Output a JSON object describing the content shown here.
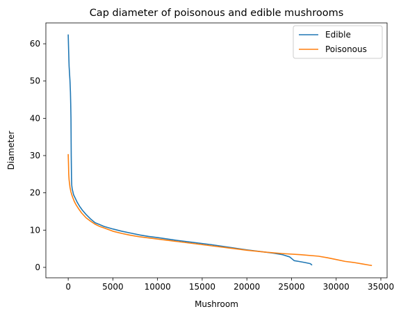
{
  "chart_data": {
    "type": "line",
    "title": "Cap diameter of poisonous and edible mushrooms",
    "xlabel": "Mushroom",
    "ylabel": "Diameter",
    "xlim": [
      -2500,
      35700
    ],
    "ylim": [
      -2.8,
      65.6
    ],
    "x_ticks": [
      0,
      5000,
      10000,
      15000,
      20000,
      25000,
      30000,
      35000
    ],
    "y_ticks": [
      0,
      10,
      20,
      30,
      40,
      50,
      60
    ],
    "grid": false,
    "legend_position": "upper-right",
    "series": [
      {
        "name": "Edible",
        "color": "#1f77b4",
        "x": [
          0,
          50,
          100,
          150,
          200,
          250,
          280,
          310,
          340,
          370,
          400,
          450,
          500,
          600,
          800,
          1000,
          1300,
          1600,
          2000,
          2500,
          3000,
          3500,
          4000,
          5000,
          6000,
          7000,
          8000,
          9000,
          10000,
          12000,
          14000,
          16000,
          18000,
          20000,
          22000,
          23000,
          24000,
          24800,
          25300,
          25800,
          26500,
          27100,
          27300
        ],
        "y": [
          62.5,
          58,
          54,
          52,
          50,
          47,
          44,
          40,
          30,
          24,
          22,
          21,
          20.5,
          19.5,
          18.5,
          17.5,
          16.3,
          15.3,
          14.2,
          13,
          12,
          11.5,
          11,
          10.3,
          9.7,
          9.2,
          8.7,
          8.3,
          8,
          7.3,
          6.7,
          6.1,
          5.4,
          4.7,
          4.1,
          3.8,
          3.4,
          2.8,
          1.8,
          1.6,
          1.3,
          1,
          0.6
        ]
      },
      {
        "name": "Poisonous",
        "color": "#ff7f0e",
        "x": [
          0,
          30,
          60,
          100,
          150,
          200,
          300,
          400,
          500,
          700,
          900,
          1200,
          1500,
          2000,
          2500,
          3000,
          3500,
          4000,
          5000,
          6000,
          7000,
          8000,
          9000,
          10000,
          12000,
          14000,
          16000,
          18000,
          20000,
          22000,
          24000,
          26000,
          28000,
          29000,
          30000,
          31000,
          32000,
          33000,
          33700,
          34000
        ],
        "y": [
          30.4,
          28,
          25,
          23.5,
          22.5,
          21.5,
          20.3,
          19.5,
          18.8,
          17.6,
          16.7,
          15.6,
          14.6,
          13.3,
          12.4,
          11.6,
          11,
          10.6,
          9.7,
          9.1,
          8.6,
          8.2,
          7.9,
          7.6,
          7,
          6.4,
          5.8,
          5.2,
          4.6,
          4.1,
          3.7,
          3.4,
          3,
          2.6,
          2.1,
          1.6,
          1.3,
          0.9,
          0.6,
          0.5
        ]
      }
    ]
  }
}
